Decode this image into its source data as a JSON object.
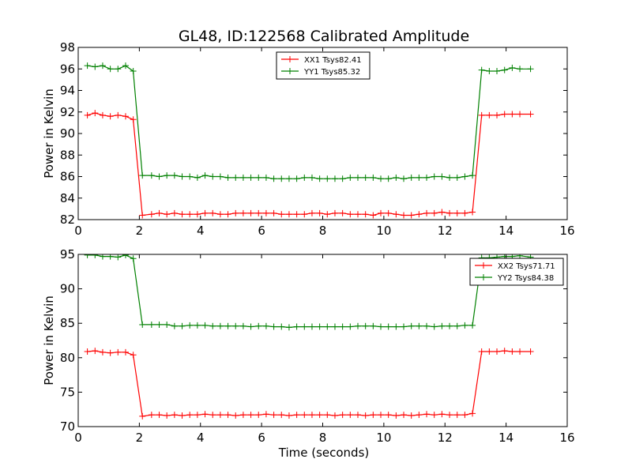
{
  "figure": {
    "title": "GL48, ID:122568 Calibrated Amplitude",
    "xlabel": "Time (seconds)"
  },
  "chart_data": [
    {
      "type": "line",
      "ylabel": "Power in Kelvin",
      "xlim": [
        0,
        16
      ],
      "ylim": [
        82,
        98
      ],
      "xticks": [
        "0",
        "2",
        "4",
        "6",
        "8",
        "10",
        "12",
        "14",
        "16"
      ],
      "yticks": [
        "82",
        "84",
        "86",
        "88",
        "90",
        "92",
        "94",
        "96",
        "98"
      ],
      "legend_position": "top-center",
      "grid": false,
      "series": [
        {
          "name": "XX1 Tsys82.41",
          "color": "#ff0000",
          "x": [
            0.3,
            0.55,
            0.8,
            1.05,
            1.3,
            1.55,
            1.8,
            2.1,
            2.4,
            2.65,
            2.9,
            3.15,
            3.4,
            3.65,
            3.9,
            4.15,
            4.4,
            4.65,
            4.9,
            5.15,
            5.4,
            5.65,
            5.9,
            6.15,
            6.4,
            6.65,
            6.9,
            7.15,
            7.4,
            7.65,
            7.9,
            8.15,
            8.4,
            8.65,
            8.9,
            9.15,
            9.4,
            9.65,
            9.9,
            10.15,
            10.4,
            10.65,
            10.9,
            11.15,
            11.4,
            11.65,
            11.9,
            12.15,
            12.4,
            12.65,
            12.9,
            13.2,
            13.45,
            13.7,
            13.95,
            14.2,
            14.45,
            14.8
          ],
          "y": [
            91.7,
            91.9,
            91.7,
            91.6,
            91.7,
            91.6,
            91.3,
            82.4,
            82.5,
            82.6,
            82.5,
            82.6,
            82.5,
            82.5,
            82.5,
            82.6,
            82.6,
            82.5,
            82.5,
            82.6,
            82.6,
            82.6,
            82.6,
            82.6,
            82.6,
            82.5,
            82.5,
            82.5,
            82.5,
            82.6,
            82.6,
            82.5,
            82.6,
            82.6,
            82.5,
            82.5,
            82.5,
            82.4,
            82.6,
            82.6,
            82.5,
            82.4,
            82.4,
            82.5,
            82.6,
            82.6,
            82.7,
            82.6,
            82.6,
            82.6,
            82.7,
            91.7,
            91.7,
            91.7,
            91.8,
            91.8,
            91.8,
            91.8
          ]
        },
        {
          "name": "YY1 Tsys85.32",
          "color": "#008000",
          "x": [
            0.3,
            0.55,
            0.8,
            1.05,
            1.3,
            1.55,
            1.8,
            2.1,
            2.4,
            2.65,
            2.9,
            3.15,
            3.4,
            3.65,
            3.9,
            4.15,
            4.4,
            4.65,
            4.9,
            5.15,
            5.4,
            5.65,
            5.9,
            6.15,
            6.4,
            6.65,
            6.9,
            7.15,
            7.4,
            7.65,
            7.9,
            8.15,
            8.4,
            8.65,
            8.9,
            9.15,
            9.4,
            9.65,
            9.9,
            10.15,
            10.4,
            10.65,
            10.9,
            11.15,
            11.4,
            11.65,
            11.9,
            12.15,
            12.4,
            12.65,
            12.9,
            13.2,
            13.45,
            13.7,
            13.95,
            14.2,
            14.45,
            14.8
          ],
          "y": [
            96.3,
            96.2,
            96.3,
            96.0,
            96.0,
            96.3,
            95.8,
            86.1,
            86.1,
            86.0,
            86.1,
            86.1,
            86.0,
            86.0,
            85.9,
            86.1,
            86.0,
            86.0,
            85.9,
            85.9,
            85.9,
            85.9,
            85.9,
            85.9,
            85.8,
            85.8,
            85.8,
            85.8,
            85.9,
            85.9,
            85.8,
            85.8,
            85.8,
            85.8,
            85.9,
            85.9,
            85.9,
            85.9,
            85.8,
            85.8,
            85.9,
            85.8,
            85.9,
            85.9,
            85.9,
            86.0,
            86.0,
            85.9,
            85.9,
            86.0,
            86.1,
            95.9,
            95.8,
            95.8,
            95.9,
            96.1,
            96.0,
            96.0
          ]
        }
      ]
    },
    {
      "type": "line",
      "ylabel": "Power in Kelvin",
      "xlim": [
        0,
        16
      ],
      "ylim": [
        70,
        95
      ],
      "xticks": [
        "0",
        "2",
        "4",
        "6",
        "8",
        "10",
        "12",
        "14",
        "16"
      ],
      "yticks": [
        "70",
        "75",
        "80",
        "85",
        "90",
        "95"
      ],
      "legend_position": "top-right",
      "grid": false,
      "series": [
        {
          "name": "XX2 Tsys71.71",
          "color": "#ff0000",
          "x": [
            0.3,
            0.55,
            0.8,
            1.05,
            1.3,
            1.55,
            1.8,
            2.1,
            2.4,
            2.65,
            2.9,
            3.15,
            3.4,
            3.65,
            3.9,
            4.15,
            4.4,
            4.65,
            4.9,
            5.15,
            5.4,
            5.65,
            5.9,
            6.15,
            6.4,
            6.65,
            6.9,
            7.15,
            7.4,
            7.65,
            7.9,
            8.15,
            8.4,
            8.65,
            8.9,
            9.15,
            9.4,
            9.65,
            9.9,
            10.15,
            10.4,
            10.65,
            10.9,
            11.15,
            11.4,
            11.65,
            11.9,
            12.15,
            12.4,
            12.65,
            12.9,
            13.2,
            13.45,
            13.7,
            13.95,
            14.2,
            14.45,
            14.8
          ],
          "y": [
            80.9,
            81.0,
            80.8,
            80.7,
            80.8,
            80.8,
            80.4,
            71.5,
            71.7,
            71.7,
            71.6,
            71.7,
            71.6,
            71.7,
            71.7,
            71.8,
            71.7,
            71.7,
            71.7,
            71.6,
            71.7,
            71.7,
            71.7,
            71.8,
            71.7,
            71.7,
            71.6,
            71.7,
            71.7,
            71.7,
            71.7,
            71.7,
            71.6,
            71.7,
            71.7,
            71.7,
            71.6,
            71.7,
            71.7,
            71.7,
            71.6,
            71.7,
            71.6,
            71.7,
            71.8,
            71.7,
            71.8,
            71.7,
            71.7,
            71.7,
            71.9,
            80.9,
            80.9,
            80.9,
            81.0,
            80.9,
            80.9,
            80.9
          ]
        },
        {
          "name": "YY2 Tsys84.38",
          "color": "#008000",
          "x": [
            0.3,
            0.55,
            0.8,
            1.05,
            1.3,
            1.55,
            1.8,
            2.1,
            2.4,
            2.65,
            2.9,
            3.15,
            3.4,
            3.65,
            3.9,
            4.15,
            4.4,
            4.65,
            4.9,
            5.15,
            5.4,
            5.65,
            5.9,
            6.15,
            6.4,
            6.65,
            6.9,
            7.15,
            7.4,
            7.65,
            7.9,
            8.15,
            8.4,
            8.65,
            8.9,
            9.15,
            9.4,
            9.65,
            9.9,
            10.15,
            10.4,
            10.65,
            10.9,
            11.15,
            11.4,
            11.65,
            11.9,
            12.15,
            12.4,
            12.65,
            12.9,
            13.2,
            13.45,
            13.7,
            13.95,
            14.2,
            14.45,
            14.8
          ],
          "y": [
            94.9,
            94.9,
            94.7,
            94.7,
            94.6,
            94.9,
            94.4,
            84.8,
            84.8,
            84.8,
            84.8,
            84.6,
            84.6,
            84.7,
            84.7,
            84.7,
            84.6,
            84.6,
            84.6,
            84.6,
            84.6,
            84.5,
            84.6,
            84.6,
            84.5,
            84.5,
            84.4,
            84.5,
            84.5,
            84.5,
            84.5,
            84.5,
            84.5,
            84.5,
            84.5,
            84.6,
            84.6,
            84.6,
            84.5,
            84.5,
            84.5,
            84.5,
            84.6,
            84.6,
            84.6,
            84.5,
            84.6,
            84.6,
            84.6,
            84.7,
            84.7,
            94.5,
            94.5,
            94.6,
            94.7,
            94.7,
            94.8,
            94.6
          ]
        }
      ]
    }
  ]
}
